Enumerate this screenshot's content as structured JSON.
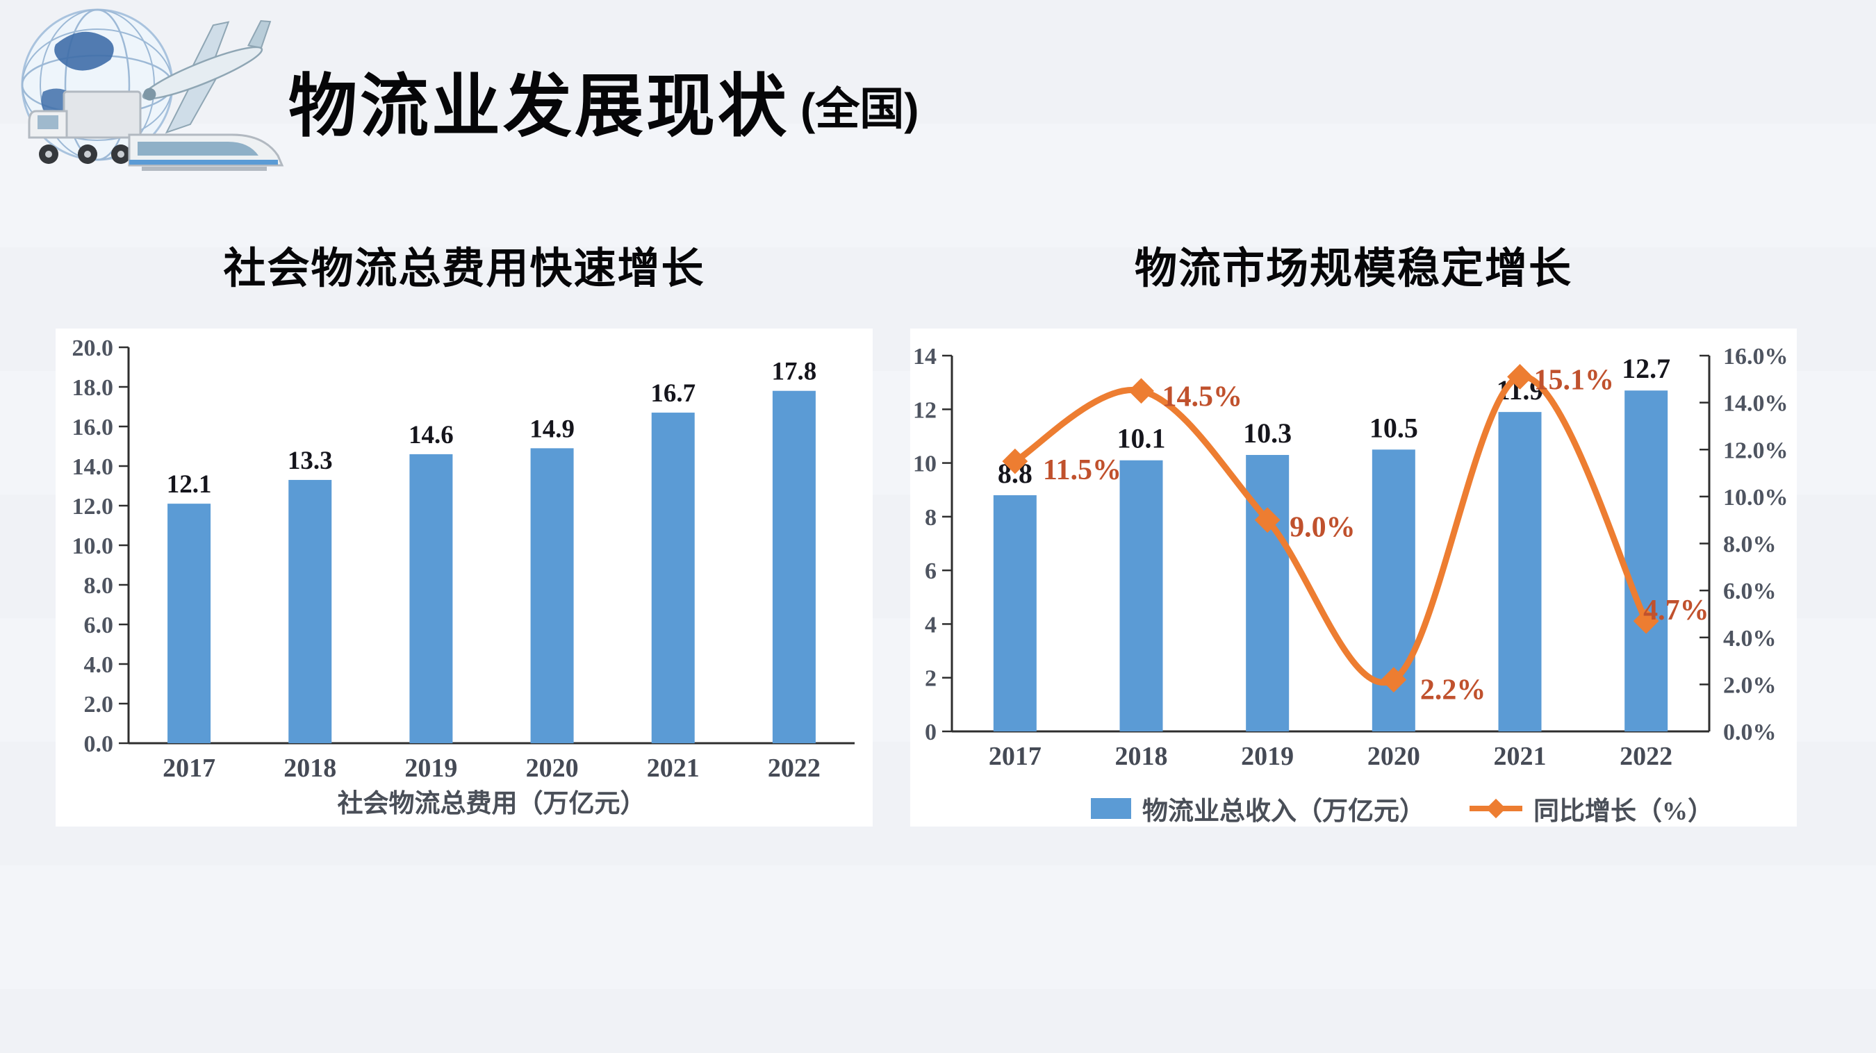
{
  "header": {
    "title": "物流业发展现状",
    "suffix": "(全国)"
  },
  "charts": [
    {
      "title": "社会物流总费用快速增长",
      "chart_data": {
        "type": "bar",
        "categories": [
          "2017",
          "2018",
          "2019",
          "2020",
          "2021",
          "2022"
        ],
        "values": [
          12.1,
          13.3,
          14.6,
          14.9,
          16.7,
          17.8
        ],
        "value_labels": [
          "12.1",
          "13.3",
          "14.6",
          "14.9",
          "16.7",
          "17.8"
        ],
        "xlabel": "社会物流总费用（万亿元）",
        "ylabel": "",
        "ylim": [
          0,
          20
        ],
        "ytick_step": 2,
        "ytick_labels": [
          "0.0",
          "2.0",
          "4.0",
          "6.0",
          "8.0",
          "10.0",
          "12.0",
          "14.0",
          "16.0",
          "18.0",
          "20.0"
        ],
        "grid": false,
        "legend_position": "none",
        "bar_color": "#5B9BD5"
      }
    },
    {
      "title": "物流市场规模稳定增长",
      "chart_data": {
        "type": "bar+line",
        "categories": [
          "2017",
          "2018",
          "2019",
          "2020",
          "2021",
          "2022"
        ],
        "series": [
          {
            "name": "物流业总收入（万亿元）",
            "type": "bar",
            "axis": "left",
            "values": [
              8.8,
              10.1,
              10.3,
              10.5,
              11.9,
              12.7
            ],
            "value_labels": [
              "8.8",
              "10.1",
              "10.3",
              "10.5",
              "11.9",
              "12.7"
            ],
            "color": "#5B9BD5"
          },
          {
            "name": "同比增长（%）",
            "type": "line",
            "axis": "right",
            "values": [
              11.5,
              14.5,
              9.0,
              2.2,
              15.1,
              4.7
            ],
            "value_labels": [
              "11.5%",
              "14.5%",
              "9.0%",
              "2.2%",
              "15.1%",
              "4.7%"
            ],
            "color": "#ED7D31",
            "label_color": "#C0512D",
            "marker": "diamond",
            "smooth": true
          }
        ],
        "left_ylim": [
          0,
          14
        ],
        "left_ytick_labels": [
          "0",
          "2",
          "4",
          "6",
          "8",
          "10",
          "12",
          "14"
        ],
        "right_ylim": [
          0,
          16
        ],
        "right_ytick_labels": [
          "0.0%",
          "2.0%",
          "4.0%",
          "6.0%",
          "8.0%",
          "10.0%",
          "12.0%",
          "14.0%",
          "16.0%"
        ],
        "grid": false,
        "legend_position": "bottom"
      }
    }
  ]
}
